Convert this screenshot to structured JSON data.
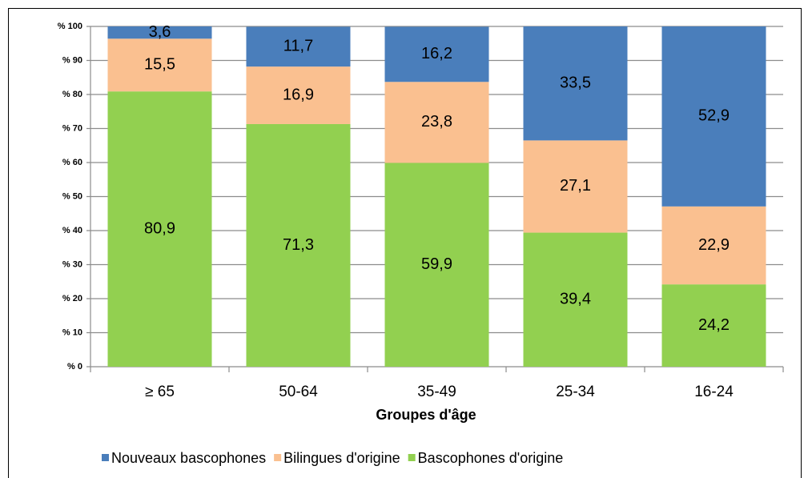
{
  "chart_data": {
    "type": "stacked_bar",
    "x_label": "Groupes d'âge",
    "categories": [
      "≥ 65",
      "50-64",
      "35-49",
      "25-34",
      "16-24"
    ],
    "series": [
      {
        "name": "Nouveaux bascophones",
        "color": "#4a7ebb",
        "values": [
          3.6,
          11.7,
          16.2,
          33.5,
          52.9
        ],
        "value_labels": [
          "3,6",
          "11,7",
          "16,2",
          "33,5",
          "52,9"
        ]
      },
      {
        "name": "Bilingues d'origine",
        "color": "#fac090",
        "values": [
          15.5,
          16.9,
          23.8,
          27.1,
          22.9
        ],
        "value_labels": [
          "15,5",
          "16,9",
          "23,8",
          "27,1",
          "22,9"
        ]
      },
      {
        "name": "Bascophones d'origine",
        "color": "#92d050",
        "values": [
          80.9,
          71.3,
          59.9,
          39.4,
          24.2
        ],
        "value_labels": [
          "80,9",
          "71,3",
          "59,9",
          "39,4",
          "24,2"
        ]
      }
    ],
    "ylim": [
      0,
      100
    ],
    "yticks": [
      {
        "value": 0,
        "label": "% 0"
      },
      {
        "value": 10,
        "label": "% 10"
      },
      {
        "value": 20,
        "label": "% 20"
      },
      {
        "value": 30,
        "label": "% 30"
      },
      {
        "value": 40,
        "label": "% 40"
      },
      {
        "value": 50,
        "label": "% 50"
      },
      {
        "value": 60,
        "label": "% 60"
      },
      {
        "value": 70,
        "label": "% 70"
      },
      {
        "value": 80,
        "label": "% 80"
      },
      {
        "value": 90,
        "label": "% 90"
      },
      {
        "value": 100,
        "label": "% 100"
      }
    ],
    "grid": true,
    "legend": "bottom"
  }
}
